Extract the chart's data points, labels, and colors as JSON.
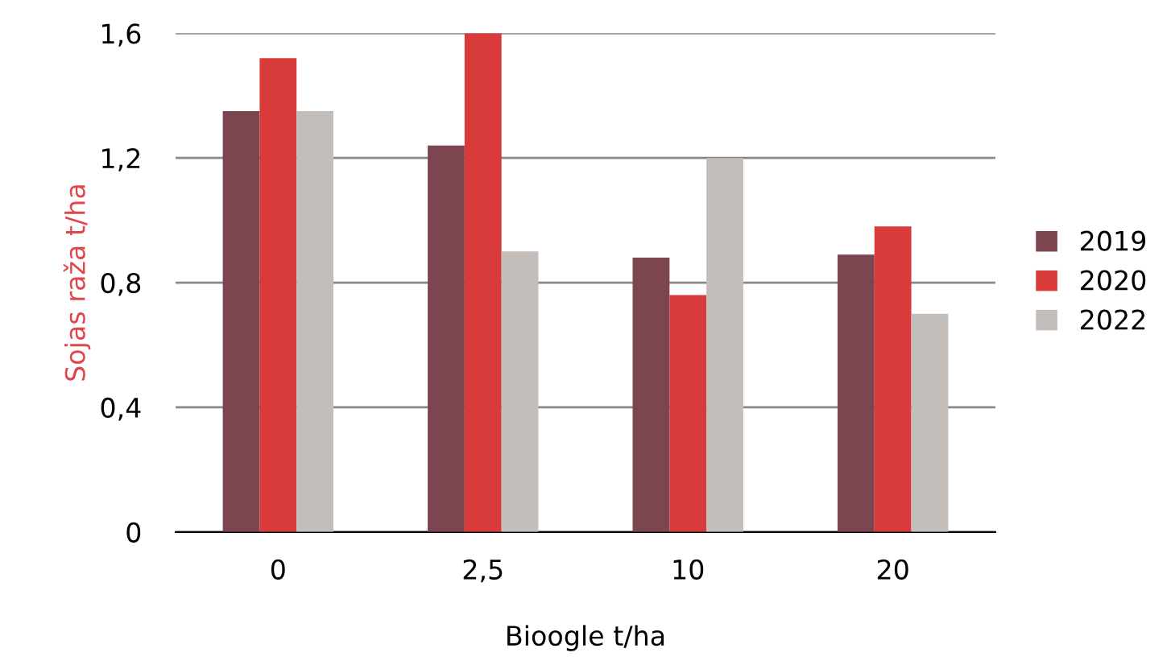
{
  "chart_data": {
    "type": "bar",
    "xlabel": "Bioogle t/ha",
    "ylabel": "Sojas raža t/ha",
    "categories": [
      "0",
      "2,5",
      "10",
      "20"
    ],
    "series": [
      {
        "name": "2019",
        "color": "#7b4650",
        "values": [
          1.35,
          1.24,
          0.88,
          0.89
        ]
      },
      {
        "name": "2020",
        "color": "#d93b3b",
        "values": [
          1.52,
          1.6,
          0.76,
          0.98
        ]
      },
      {
        "name": "2022",
        "color": "#c4bebb",
        "values": [
          1.35,
          0.9,
          1.2,
          0.7
        ]
      }
    ],
    "ylim": [
      0,
      1.6
    ],
    "yticks": [
      0,
      {
        "value": 0.4,
        "label": "0,4"
      },
      {
        "value": 0.8,
        "label": "0,8"
      },
      {
        "value": 1.2,
        "label": "1,2"
      },
      {
        "value": 1.6,
        "label": "1,6"
      }
    ],
    "grid": "y",
    "legend": "right"
  }
}
